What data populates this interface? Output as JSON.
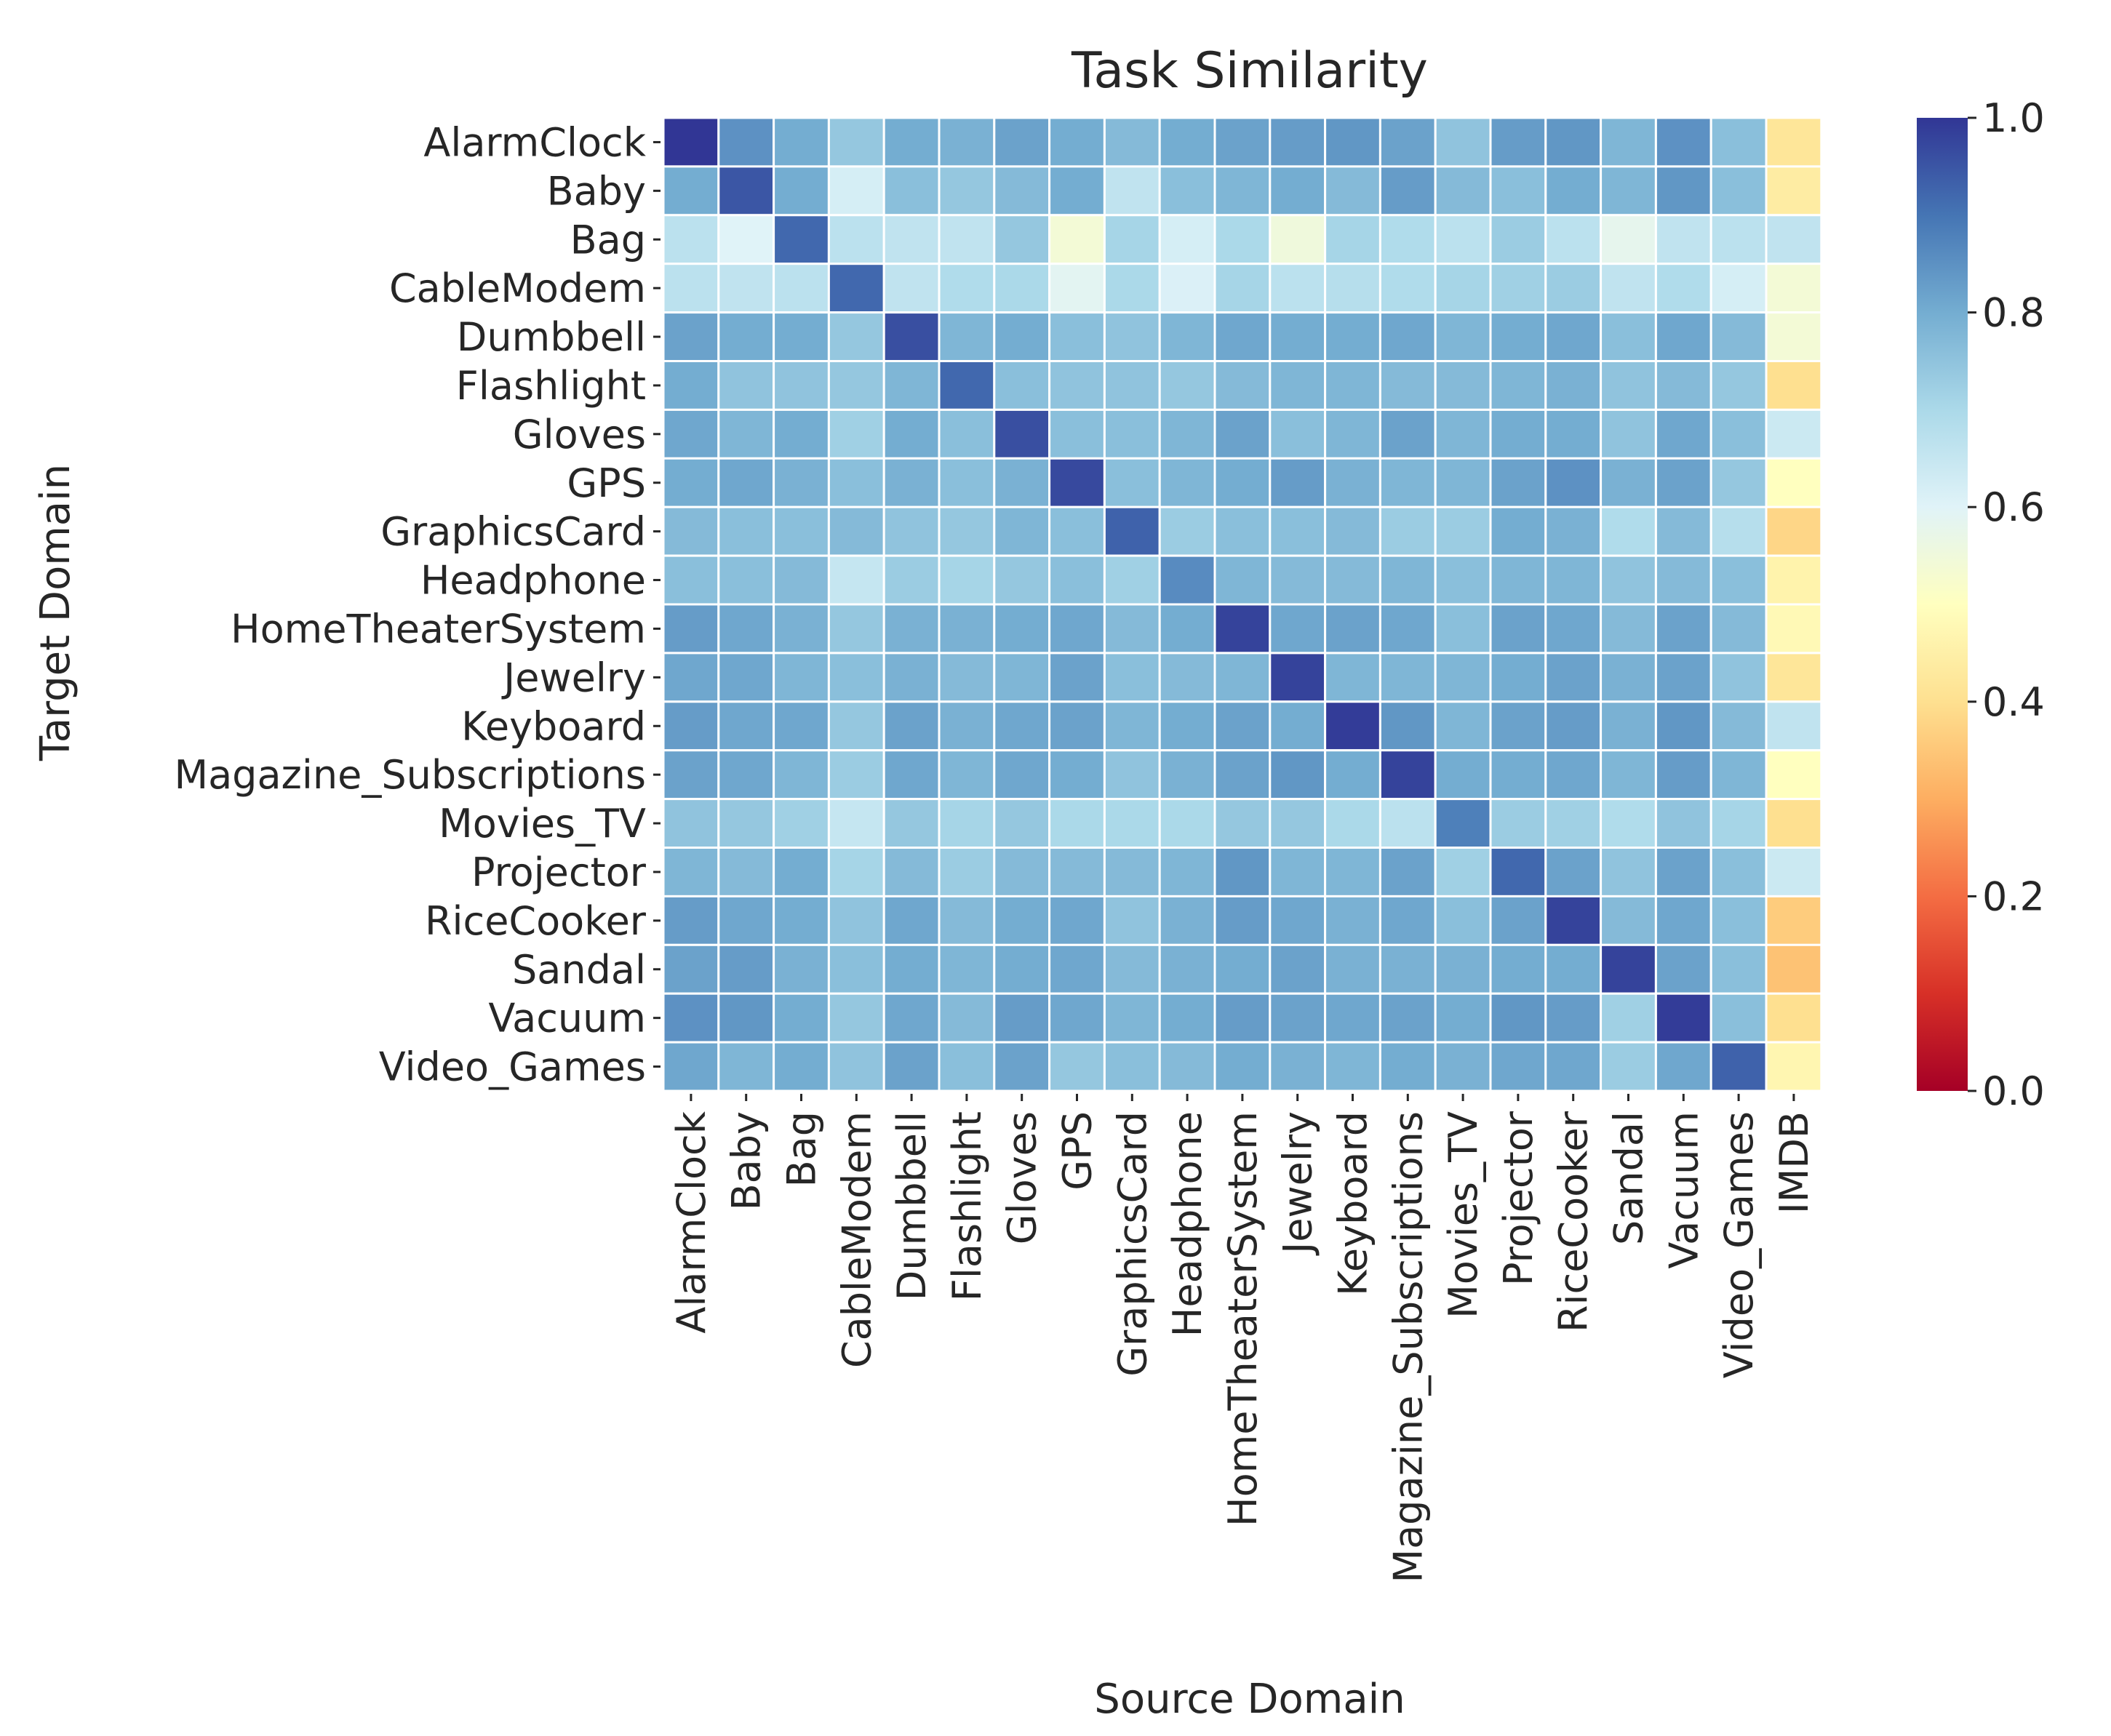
{
  "chart_data": {
    "type": "heatmap",
    "title": "Task Similarity",
    "xlabel": "Source Domain",
    "ylabel": "Target Domain",
    "x_categories": [
      "AlarmClock",
      "Baby",
      "Bag",
      "CableModem",
      "Dumbbell",
      "Flashlight",
      "Gloves",
      "GPS",
      "GraphicsCard",
      "Headphone",
      "HomeTheaterSystem",
      "Jewelry",
      "Keyboard",
      "Magazine_Subscriptions",
      "Movies_TV",
      "Projector",
      "RiceCooker",
      "Sandal",
      "Vacuum",
      "Video_Games",
      "IMDB"
    ],
    "y_categories": [
      "AlarmClock",
      "Baby",
      "Bag",
      "CableModem",
      "Dumbbell",
      "Flashlight",
      "Gloves",
      "GPS",
      "GraphicsCard",
      "Headphone",
      "HomeTheaterSystem",
      "Jewelry",
      "Keyboard",
      "Magazine_Subscriptions",
      "Movies_TV",
      "Projector",
      "RiceCooker",
      "Sandal",
      "Vacuum",
      "Video_Games"
    ],
    "values": [
      [
        1.0,
        0.85,
        0.8,
        0.74,
        0.8,
        0.79,
        0.82,
        0.8,
        0.77,
        0.8,
        0.82,
        0.83,
        0.84,
        0.82,
        0.75,
        0.83,
        0.84,
        0.78,
        0.85,
        0.76,
        0.42
      ],
      [
        0.8,
        0.95,
        0.8,
        0.62,
        0.76,
        0.74,
        0.77,
        0.8,
        0.66,
        0.76,
        0.78,
        0.8,
        0.77,
        0.83,
        0.77,
        0.76,
        0.8,
        0.78,
        0.84,
        0.76,
        0.44
      ],
      [
        0.67,
        0.6,
        0.92,
        0.67,
        0.66,
        0.66,
        0.74,
        0.54,
        0.71,
        0.62,
        0.7,
        0.55,
        0.71,
        0.69,
        0.67,
        0.73,
        0.67,
        0.58,
        0.66,
        0.67,
        0.66
      ],
      [
        0.67,
        0.66,
        0.67,
        0.92,
        0.66,
        0.69,
        0.7,
        0.59,
        0.7,
        0.61,
        0.71,
        0.67,
        0.68,
        0.69,
        0.71,
        0.72,
        0.73,
        0.66,
        0.69,
        0.62,
        0.54
      ],
      [
        0.82,
        0.8,
        0.8,
        0.74,
        0.96,
        0.78,
        0.8,
        0.76,
        0.75,
        0.78,
        0.81,
        0.8,
        0.8,
        0.81,
        0.78,
        0.8,
        0.81,
        0.76,
        0.81,
        0.77,
        0.54
      ],
      [
        0.8,
        0.75,
        0.75,
        0.74,
        0.78,
        0.92,
        0.76,
        0.75,
        0.75,
        0.74,
        0.77,
        0.78,
        0.78,
        0.77,
        0.77,
        0.78,
        0.79,
        0.75,
        0.77,
        0.74,
        0.4
      ],
      [
        0.81,
        0.78,
        0.8,
        0.72,
        0.8,
        0.76,
        0.96,
        0.76,
        0.76,
        0.78,
        0.82,
        0.76,
        0.78,
        0.82,
        0.78,
        0.8,
        0.8,
        0.75,
        0.81,
        0.76,
        0.64
      ],
      [
        0.8,
        0.81,
        0.79,
        0.76,
        0.79,
        0.76,
        0.79,
        0.97,
        0.76,
        0.78,
        0.8,
        0.83,
        0.79,
        0.78,
        0.78,
        0.82,
        0.85,
        0.79,
        0.82,
        0.74,
        0.5
      ],
      [
        0.77,
        0.76,
        0.76,
        0.77,
        0.75,
        0.74,
        0.78,
        0.76,
        0.93,
        0.73,
        0.76,
        0.76,
        0.77,
        0.73,
        0.73,
        0.8,
        0.79,
        0.69,
        0.77,
        0.68,
        0.38
      ],
      [
        0.76,
        0.76,
        0.77,
        0.65,
        0.73,
        0.71,
        0.74,
        0.76,
        0.72,
        0.86,
        0.78,
        0.77,
        0.77,
        0.78,
        0.76,
        0.78,
        0.78,
        0.75,
        0.77,
        0.76,
        0.46
      ],
      [
        0.83,
        0.81,
        0.79,
        0.74,
        0.79,
        0.79,
        0.8,
        0.81,
        0.77,
        0.8,
        0.98,
        0.81,
        0.82,
        0.81,
        0.76,
        0.82,
        0.81,
        0.77,
        0.82,
        0.77,
        0.48
      ],
      [
        0.81,
        0.81,
        0.78,
        0.76,
        0.79,
        0.77,
        0.78,
        0.82,
        0.76,
        0.77,
        0.78,
        0.98,
        0.78,
        0.78,
        0.78,
        0.8,
        0.82,
        0.79,
        0.82,
        0.75,
        0.42
      ],
      [
        0.83,
        0.81,
        0.81,
        0.74,
        0.82,
        0.79,
        0.81,
        0.82,
        0.78,
        0.8,
        0.82,
        0.8,
        0.99,
        0.84,
        0.78,
        0.82,
        0.83,
        0.79,
        0.84,
        0.77,
        0.66
      ],
      [
        0.82,
        0.81,
        0.78,
        0.73,
        0.81,
        0.78,
        0.81,
        0.8,
        0.75,
        0.79,
        0.82,
        0.84,
        0.8,
        0.98,
        0.8,
        0.8,
        0.81,
        0.78,
        0.83,
        0.78,
        0.5
      ],
      [
        0.75,
        0.74,
        0.72,
        0.65,
        0.74,
        0.71,
        0.74,
        0.7,
        0.7,
        0.7,
        0.74,
        0.74,
        0.7,
        0.67,
        0.88,
        0.73,
        0.72,
        0.69,
        0.75,
        0.71,
        0.4
      ],
      [
        0.78,
        0.77,
        0.8,
        0.71,
        0.77,
        0.73,
        0.77,
        0.77,
        0.77,
        0.78,
        0.84,
        0.78,
        0.78,
        0.82,
        0.72,
        0.92,
        0.82,
        0.75,
        0.82,
        0.76,
        0.64
      ],
      [
        0.83,
        0.81,
        0.8,
        0.75,
        0.81,
        0.77,
        0.8,
        0.81,
        0.75,
        0.79,
        0.83,
        0.81,
        0.79,
        0.81,
        0.76,
        0.82,
        0.98,
        0.77,
        0.81,
        0.76,
        0.36
      ],
      [
        0.82,
        0.83,
        0.79,
        0.76,
        0.8,
        0.78,
        0.8,
        0.81,
        0.77,
        0.79,
        0.8,
        0.82,
        0.79,
        0.79,
        0.79,
        0.8,
        0.8,
        0.98,
        0.82,
        0.76,
        0.34
      ],
      [
        0.85,
        0.84,
        0.8,
        0.74,
        0.81,
        0.77,
        0.83,
        0.81,
        0.78,
        0.8,
        0.83,
        0.82,
        0.81,
        0.82,
        0.8,
        0.84,
        0.83,
        0.72,
        0.99,
        0.76,
        0.4
      ],
      [
        0.81,
        0.78,
        0.8,
        0.75,
        0.82,
        0.76,
        0.82,
        0.74,
        0.76,
        0.77,
        0.8,
        0.79,
        0.78,
        0.8,
        0.79,
        0.81,
        0.81,
        0.73,
        0.81,
        0.93,
        0.47
      ]
    ],
    "vmin": 0.0,
    "vmax": 1.0,
    "colormap": "RdYlBu",
    "colorbar_ticks": [
      "0.0",
      "0.2",
      "0.4",
      "0.6",
      "0.8",
      "1.0"
    ],
    "colorbar_tick_values": [
      0.0,
      0.2,
      0.4,
      0.6,
      0.8,
      1.0
    ],
    "grid": false,
    "cell_border_color": "#ffffff"
  }
}
